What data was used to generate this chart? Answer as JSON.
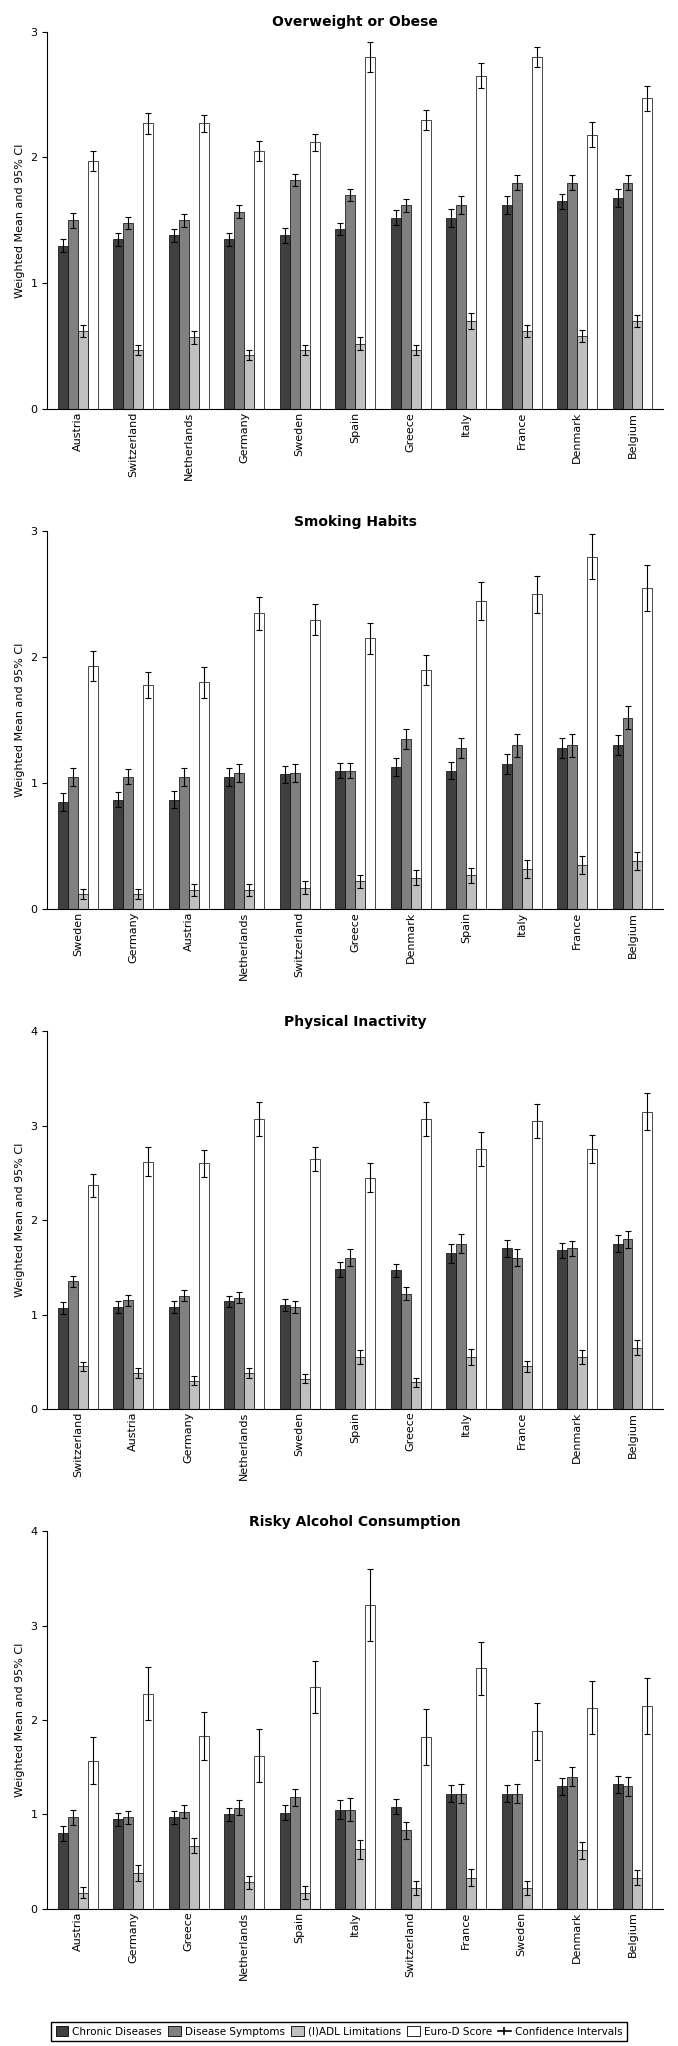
{
  "panels": [
    {
      "title": "Overweight or Obese",
      "ylim": [
        0,
        3
      ],
      "yticks": [
        0,
        1,
        2,
        3
      ],
      "countries": [
        "Austria",
        "Switzerland",
        "Netherlands",
        "Germany",
        "Sweden",
        "Spain",
        "Greece",
        "Italy",
        "France",
        "Denmark",
        "Belgium"
      ],
      "chronic": [
        1.3,
        1.35,
        1.38,
        1.35,
        1.38,
        1.43,
        1.52,
        1.52,
        1.62,
        1.65,
        1.68
      ],
      "disease": [
        1.5,
        1.48,
        1.5,
        1.57,
        1.82,
        1.7,
        1.62,
        1.62,
        1.8,
        1.8,
        1.8
      ],
      "iadl": [
        0.62,
        0.47,
        0.57,
        0.43,
        0.47,
        0.52,
        0.47,
        0.7,
        0.62,
        0.58,
        0.7
      ],
      "eurod": [
        1.97,
        2.27,
        2.27,
        2.05,
        2.12,
        2.8,
        2.3,
        2.65,
        2.8,
        2.18,
        2.47
      ],
      "chronic_err": [
        0.05,
        0.05,
        0.05,
        0.05,
        0.06,
        0.05,
        0.06,
        0.07,
        0.07,
        0.06,
        0.07
      ],
      "disease_err": [
        0.06,
        0.05,
        0.05,
        0.05,
        0.05,
        0.05,
        0.05,
        0.07,
        0.06,
        0.06,
        0.06
      ],
      "iadl_err": [
        0.05,
        0.04,
        0.05,
        0.04,
        0.04,
        0.05,
        0.04,
        0.06,
        0.05,
        0.05,
        0.05
      ],
      "eurod_err": [
        0.08,
        0.08,
        0.07,
        0.08,
        0.07,
        0.12,
        0.08,
        0.1,
        0.08,
        0.1,
        0.1
      ]
    },
    {
      "title": "Smoking Habits",
      "ylim": [
        0,
        3
      ],
      "yticks": [
        0,
        1,
        2,
        3
      ],
      "countries": [
        "Sweden",
        "Germany",
        "Austria",
        "Netherlands",
        "Switzerland",
        "Greece",
        "Denmark",
        "Spain",
        "Italy",
        "France",
        "Belgium"
      ],
      "chronic": [
        0.85,
        0.87,
        0.87,
        1.05,
        1.07,
        1.1,
        1.13,
        1.1,
        1.15,
        1.28,
        1.3
      ],
      "disease": [
        1.05,
        1.05,
        1.05,
        1.08,
        1.08,
        1.1,
        1.35,
        1.28,
        1.3,
        1.3,
        1.52
      ],
      "iadl": [
        0.12,
        0.12,
        0.15,
        0.15,
        0.17,
        0.22,
        0.25,
        0.27,
        0.32,
        0.35,
        0.38
      ],
      "eurod": [
        1.93,
        1.78,
        1.8,
        2.35,
        2.3,
        2.15,
        1.9,
        2.45,
        2.5,
        2.8,
        2.55
      ],
      "chronic_err": [
        0.07,
        0.06,
        0.07,
        0.07,
        0.07,
        0.06,
        0.07,
        0.07,
        0.08,
        0.08,
        0.08
      ],
      "disease_err": [
        0.07,
        0.06,
        0.07,
        0.07,
        0.07,
        0.06,
        0.08,
        0.08,
        0.09,
        0.09,
        0.09
      ],
      "iadl_err": [
        0.04,
        0.04,
        0.05,
        0.05,
        0.05,
        0.05,
        0.06,
        0.06,
        0.07,
        0.07,
        0.07
      ],
      "eurod_err": [
        0.12,
        0.1,
        0.12,
        0.13,
        0.12,
        0.12,
        0.12,
        0.15,
        0.15,
        0.18,
        0.18
      ]
    },
    {
      "title": "Physical Inactivity",
      "ylim": [
        0,
        4
      ],
      "yticks": [
        0,
        1,
        2,
        3,
        4
      ],
      "countries": [
        "Switzerland",
        "Austria",
        "Germany",
        "Netherlands",
        "Sweden",
        "Spain",
        "Greece",
        "Italy",
        "France",
        "Denmark",
        "Belgium"
      ],
      "chronic": [
        1.07,
        1.08,
        1.08,
        1.14,
        1.1,
        1.48,
        1.47,
        1.65,
        1.7,
        1.68,
        1.75
      ],
      "disease": [
        1.35,
        1.15,
        1.2,
        1.18,
        1.08,
        1.6,
        1.22,
        1.75,
        1.6,
        1.7,
        1.8
      ],
      "iadl": [
        0.45,
        0.38,
        0.3,
        0.38,
        0.32,
        0.55,
        0.28,
        0.55,
        0.45,
        0.55,
        0.65
      ],
      "eurod": [
        2.37,
        2.62,
        2.6,
        3.07,
        2.65,
        2.45,
        3.07,
        2.75,
        3.05,
        2.75,
        3.15
      ],
      "chronic_err": [
        0.06,
        0.06,
        0.06,
        0.06,
        0.06,
        0.08,
        0.07,
        0.1,
        0.09,
        0.08,
        0.09
      ],
      "disease_err": [
        0.06,
        0.06,
        0.06,
        0.06,
        0.06,
        0.09,
        0.07,
        0.1,
        0.09,
        0.08,
        0.09
      ],
      "iadl_err": [
        0.05,
        0.05,
        0.05,
        0.05,
        0.05,
        0.07,
        0.05,
        0.08,
        0.06,
        0.07,
        0.08
      ],
      "eurod_err": [
        0.12,
        0.15,
        0.14,
        0.18,
        0.13,
        0.15,
        0.18,
        0.18,
        0.18,
        0.15,
        0.2
      ]
    },
    {
      "title": "Risky Alcohol Consumption",
      "ylim": [
        0,
        4
      ],
      "yticks": [
        0,
        1,
        2,
        3,
        4
      ],
      "countries": [
        "Austria",
        "Germany",
        "Greece",
        "Netherlands",
        "Spain",
        "Italy",
        "Switzerland",
        "France",
        "Sweden",
        "Denmark",
        "Belgium"
      ],
      "chronic": [
        0.8,
        0.95,
        0.97,
        1.0,
        1.02,
        1.05,
        1.08,
        1.22,
        1.22,
        1.3,
        1.32
      ],
      "disease": [
        0.97,
        0.97,
        1.03,
        1.07,
        1.18,
        1.05,
        0.83,
        1.22,
        1.22,
        1.4,
        1.3
      ],
      "iadl": [
        0.17,
        0.38,
        0.67,
        0.28,
        0.17,
        0.63,
        0.22,
        0.33,
        0.22,
        0.62,
        0.33
      ],
      "eurod": [
        1.57,
        2.28,
        1.83,
        1.62,
        2.35,
        3.22,
        1.82,
        2.55,
        1.88,
        2.13,
        2.15
      ],
      "chronic_err": [
        0.08,
        0.07,
        0.07,
        0.07,
        0.08,
        0.1,
        0.08,
        0.09,
        0.09,
        0.09,
        0.09
      ],
      "disease_err": [
        0.08,
        0.07,
        0.07,
        0.08,
        0.09,
        0.12,
        0.09,
        0.1,
        0.1,
        0.1,
        0.1
      ],
      "iadl_err": [
        0.06,
        0.08,
        0.08,
        0.07,
        0.07,
        0.1,
        0.07,
        0.09,
        0.07,
        0.09,
        0.08
      ],
      "eurod_err": [
        0.25,
        0.28,
        0.25,
        0.28,
        0.28,
        0.38,
        0.3,
        0.28,
        0.3,
        0.28,
        0.3
      ]
    }
  ],
  "colors": {
    "chronic": "#404040",
    "disease": "#808080",
    "iadl": "#c0c0c0",
    "eurod": "#ffffff"
  },
  "bar_edge": "#000000",
  "bar_width": 0.18,
  "legend_labels": [
    "Chronic Diseases",
    "Disease Symptoms",
    "(I)ADL Limitations",
    "Euro-D Score",
    "Confidence Intervals"
  ],
  "ylabel": "Weighted Mean and 95% CI"
}
